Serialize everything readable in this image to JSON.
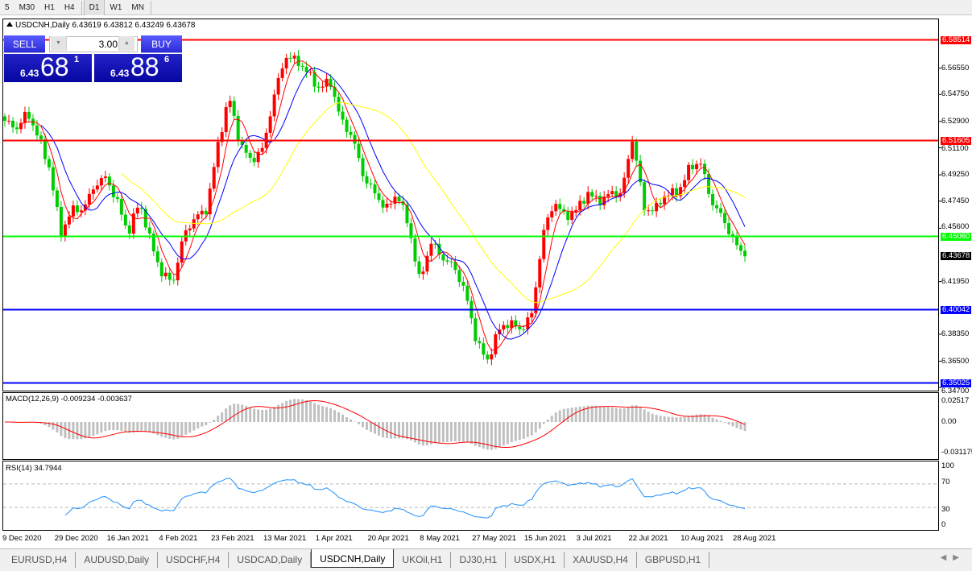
{
  "toolbar": {
    "timeframes": [
      "5",
      "M30",
      "H1",
      "H4",
      "D1",
      "W1",
      "MN"
    ],
    "active": "D1"
  },
  "chart": {
    "symbol_line": "USDCNH,Daily  6.43619 6.43812 6.43249 6.43678",
    "price_ticks": [
      "6.56550",
      "6.54750",
      "6.52900",
      "6.51100",
      "6.49250",
      "6.47450",
      "6.45600",
      "6.41950",
      "6.38350",
      "6.36500",
      "6.34700"
    ],
    "hlines": [
      {
        "price": 6.58514,
        "label": "6.58514",
        "color": "#ff0000"
      },
      {
        "price": 6.51605,
        "label": "6.51605",
        "color": "#ff0000"
      },
      {
        "price": 6.4506,
        "label": "6.45060",
        "color": "#00ff00"
      },
      {
        "price": 6.40042,
        "label": "6.40042",
        "color": "#0000ff"
      },
      {
        "price": 6.35025,
        "label": "6.35025",
        "color": "#0000ff"
      }
    ],
    "current_price": "6.43678",
    "bull_color": "#ff0000",
    "bear_color": "#00cc00",
    "ma_colors": [
      "#ff0000",
      "#0000ff",
      "#ffff00"
    ],
    "closes": [
      6.5295,
      6.524,
      6.535,
      6.5185,
      6.4964,
      6.4524,
      6.4689,
      6.4689,
      6.4854,
      6.4909,
      6.4744,
      6.4524,
      6.4744,
      6.4468,
      6.4248,
      6.4193,
      6.4524,
      6.4634,
      6.4689,
      6.513,
      6.546,
      6.513,
      6.502,
      6.5102,
      6.546,
      6.5736,
      6.5708,
      6.5626,
      6.5515,
      6.557,
      6.5295,
      6.5185,
      6.4909,
      6.4799,
      6.4689,
      6.4799,
      6.4579,
      6.4193,
      6.4468,
      6.4358,
      6.4303,
      6.4138,
      6.3807,
      6.3642,
      6.3862,
      6.3917,
      6.3862,
      6.3972,
      6.4524,
      6.4744,
      6.4634,
      6.4689,
      6.4799,
      6.4744,
      6.4799,
      6.4799,
      6.5185,
      6.4689,
      6.4689,
      6.4799,
      6.4799,
      6.4964,
      6.502,
      6.4744,
      6.4634,
      6.4468,
      6.4368
    ],
    "dates": [
      "9 Dec 2020",
      "29 Dec 2020",
      "16 Jan 2021",
      "4 Feb 2021",
      "23 Feb 2021",
      "13 Mar 2021",
      "1 Apr 2021",
      "20 Apr 2021",
      "8 May 2021",
      "27 May 2021",
      "15 Jun 2021",
      "3 Jul 2021",
      "22 Jul 2021",
      "10 Aug 2021",
      "28 Aug 2021"
    ]
  },
  "trade": {
    "sell": "SELL",
    "buy": "BUY",
    "lot": "3.00",
    "bid_small": "6.43",
    "bid_big": "68",
    "bid_pip": "1",
    "ask_small": "6.43",
    "ask_big": "88",
    "ask_pip": "6"
  },
  "macd": {
    "label": "MACD(12,26,9) -0.009234 -0.003637",
    "ticks": [
      "0.02517",
      "0.00",
      "-0.031175"
    ],
    "hist_color": "#c0c0c0",
    "signal_color": "#ff0000"
  },
  "rsi": {
    "label": "RSI(14) 34.7944",
    "ticks": [
      "100",
      "70",
      "30",
      "0"
    ],
    "color": "#1e90ff"
  },
  "tabs": [
    "EURUSD,H4",
    "AUDUSD,Daily",
    "USDCHF,H4",
    "USDCAD,Daily",
    "USDCNH,Daily",
    "UKOil,H1",
    "DJ30,H1",
    "USDX,H1",
    "XAUUSD,H4",
    "GBPUSD,H1"
  ],
  "active_tab": "USDCNH,Daily"
}
